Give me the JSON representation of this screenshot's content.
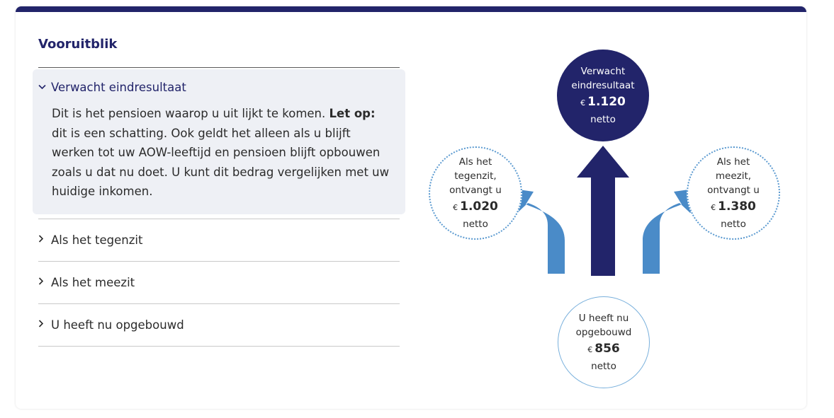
{
  "section": {
    "title": "Vooruitblik"
  },
  "accordion": {
    "open_item": {
      "label": "Verwacht eindresultaat",
      "body_part1": "Dit is het pensioen waarop u uit lijkt te komen. ",
      "body_bold": "Let op:",
      "body_part2": " dit is een schatting. Ook geldt het alleen als u blijft werken tot uw AOW-leeftijd en pensioen blijft opbouwen zoals u dat nu doet. U kunt dit bedrag vergelijken met uw huidige inkomen."
    },
    "items": [
      {
        "label": "Als het tegenzit"
      },
      {
        "label": "Als het meezit"
      },
      {
        "label": "U heeft nu opgebouwd"
      }
    ]
  },
  "graphic": {
    "currency": "€",
    "netto": "netto",
    "expected": {
      "line1": "Verwacht",
      "line2": "eindresultaat",
      "amount": "1.120"
    },
    "worse": {
      "line1": "Als het",
      "line2": "tegenzit,",
      "line3": "ontvangt u",
      "amount": "1.020"
    },
    "better": {
      "line1": "Als het",
      "line2": "meezit,",
      "line3": "ontvangt u",
      "amount": "1.380"
    },
    "built": {
      "line1": "U heeft nu",
      "line2": "opgebouwd",
      "amount": "856"
    },
    "colors": {
      "navy": "#22246a",
      "blue": "#4a8bc8",
      "dotted_border": "#5b9ad0"
    }
  }
}
